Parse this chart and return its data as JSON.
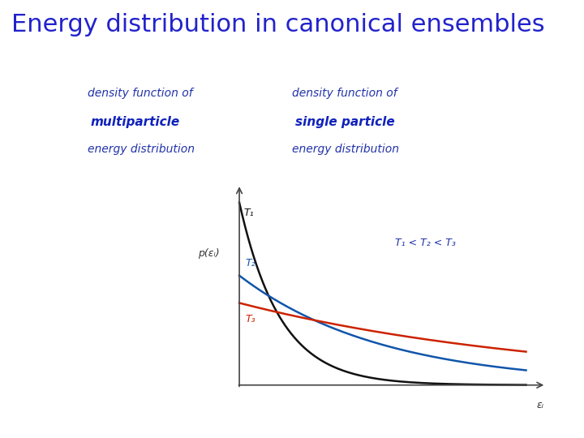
{
  "title": "Energy distribution in canonical ensembles",
  "title_color": "#2222CC",
  "title_fontsize": 22,
  "background_color": "#FFFFFF",
  "left_label_line1": "density function of",
  "left_label_line2": "multiparticle",
  "left_label_line3": "energy distribution",
  "right_label_line1": "density function of",
  "right_label_line2": "single particle",
  "right_label_line3": "energy distribution",
  "label_color": "#2233AA",
  "label_bold_color": "#1122BB",
  "curve_T1_color": "#111111",
  "curve_T2_color": "#1155AA",
  "curve_T3_color": "#CC2200",
  "axis_color": "#444444",
  "annotation_color": "#2233AA",
  "T1_label": "T₁",
  "T2_label": "T₂",
  "T3_label": "T₃",
  "inequality_label": "T₁ < T₂ < T₃",
  "xlabel": "εᵢ",
  "ylabel": "p(εᵢ)"
}
